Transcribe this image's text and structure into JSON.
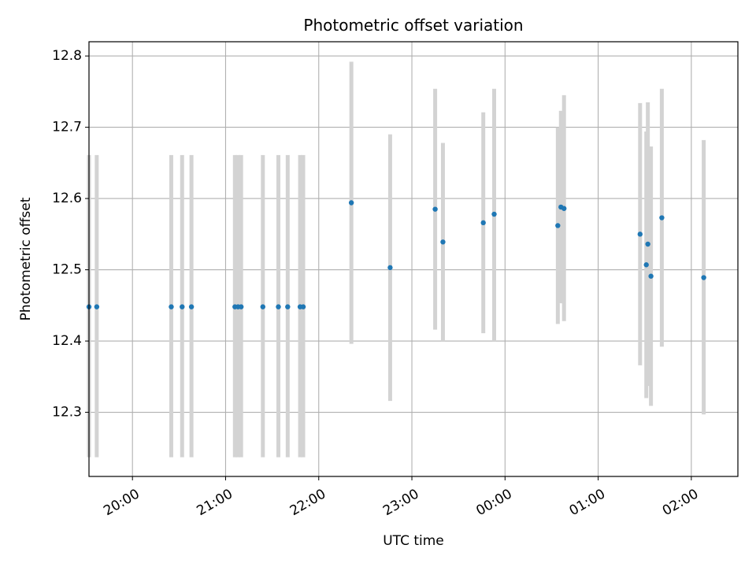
{
  "chart_data": {
    "type": "scatter",
    "title": "Photometric offset variation",
    "xlabel": "UTC time",
    "ylabel": "Photometric offset",
    "grid": true,
    "x_axis_kind": "time",
    "xlim": [
      "19:32",
      "02:30"
    ],
    "ylim": [
      12.21,
      12.82
    ],
    "x_ticks": [
      "20:00",
      "21:00",
      "22:00",
      "23:00",
      "00:00",
      "01:00",
      "02:00"
    ],
    "y_ticks": [
      "12.3",
      "12.4",
      "12.5",
      "12.6",
      "12.7",
      "12.8"
    ],
    "marker_color": "#1f77b4",
    "errorbar_color": "#d3d3d3",
    "points": [
      {
        "x": "19:32",
        "y": 12.448,
        "yerr_low": 12.237,
        "yerr_high": 12.661
      },
      {
        "x": "19:37",
        "y": 12.448,
        "yerr_low": 12.237,
        "yerr_high": 12.661
      },
      {
        "x": "20:25",
        "y": 12.448,
        "yerr_low": 12.237,
        "yerr_high": 12.661
      },
      {
        "x": "20:32",
        "y": 12.448,
        "yerr_low": 12.237,
        "yerr_high": 12.661
      },
      {
        "x": "20:38",
        "y": 12.448,
        "yerr_low": 12.237,
        "yerr_high": 12.661
      },
      {
        "x": "21:06",
        "y": 12.448,
        "yerr_low": 12.237,
        "yerr_high": 12.661
      },
      {
        "x": "21:08",
        "y": 12.448,
        "yerr_low": 12.237,
        "yerr_high": 12.661
      },
      {
        "x": "21:10",
        "y": 12.448,
        "yerr_low": 12.237,
        "yerr_high": 12.661
      },
      {
        "x": "21:24",
        "y": 12.448,
        "yerr_low": 12.237,
        "yerr_high": 12.661
      },
      {
        "x": "21:34",
        "y": 12.448,
        "yerr_low": 12.237,
        "yerr_high": 12.661
      },
      {
        "x": "21:40",
        "y": 12.448,
        "yerr_low": 12.237,
        "yerr_high": 12.661
      },
      {
        "x": "21:48",
        "y": 12.448,
        "yerr_low": 12.237,
        "yerr_high": 12.661
      },
      {
        "x": "21:50",
        "y": 12.448,
        "yerr_low": 12.237,
        "yerr_high": 12.661
      },
      {
        "x": "22:21",
        "y": 12.594,
        "yerr_low": 12.396,
        "yerr_high": 12.792
      },
      {
        "x": "22:46",
        "y": 12.503,
        "yerr_low": 12.316,
        "yerr_high": 12.69
      },
      {
        "x": "23:15",
        "y": 12.585,
        "yerr_low": 12.416,
        "yerr_high": 12.754
      },
      {
        "x": "23:20",
        "y": 12.539,
        "yerr_low": 12.4,
        "yerr_high": 12.678
      },
      {
        "x": "23:46",
        "y": 12.566,
        "yerr_low": 12.411,
        "yerr_high": 12.721
      },
      {
        "x": "23:53",
        "y": 12.578,
        "yerr_low": 12.4,
        "yerr_high": 12.754
      },
      {
        "x": "00:34",
        "y": 12.562,
        "yerr_low": 12.424,
        "yerr_high": 12.7
      },
      {
        "x": "00:36",
        "y": 12.588,
        "yerr_low": 12.453,
        "yerr_high": 12.723
      },
      {
        "x": "00:38",
        "y": 12.586,
        "yerr_low": 12.428,
        "yerr_high": 12.745
      },
      {
        "x": "01:27",
        "y": 12.55,
        "yerr_low": 12.366,
        "yerr_high": 12.734
      },
      {
        "x": "01:31",
        "y": 12.507,
        "yerr_low": 12.32,
        "yerr_high": 12.694
      },
      {
        "x": "01:32",
        "y": 12.536,
        "yerr_low": 12.337,
        "yerr_high": 12.735
      },
      {
        "x": "01:34",
        "y": 12.491,
        "yerr_low": 12.309,
        "yerr_high": 12.673
      },
      {
        "x": "01:41",
        "y": 12.573,
        "yerr_low": 12.392,
        "yerr_high": 12.754
      },
      {
        "x": "02:08",
        "y": 12.489,
        "yerr_low": 12.297,
        "yerr_high": 12.682
      }
    ]
  }
}
